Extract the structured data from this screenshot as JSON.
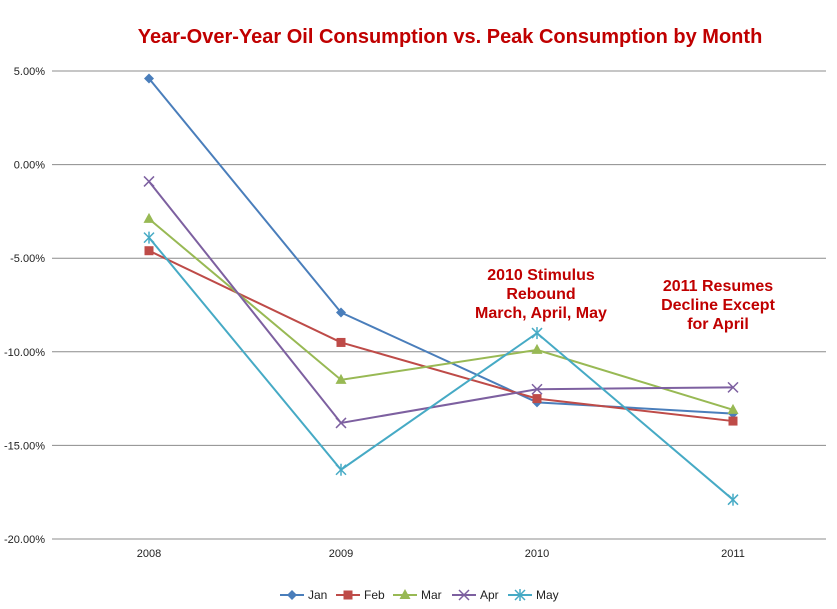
{
  "chart_data": {
    "type": "line",
    "title": "Year-Over-Year Oil Consumption vs. Peak Consumption by Month",
    "title_color": "#C00000",
    "categories": [
      "2008",
      "2009",
      "2010",
      "2011"
    ],
    "ylim": [
      -20,
      5
    ],
    "yticks": [
      5,
      0,
      -5,
      -10,
      -15,
      -20
    ],
    "ytick_labels": [
      "5.00%",
      "0.00%",
      "-5.00%",
      "-10.00%",
      "-15.00%",
      "-20.00%"
    ],
    "grid": true,
    "legend_position": "bottom",
    "series": [
      {
        "name": "Jan",
        "values": [
          4.6,
          -7.9,
          -12.7,
          -13.3
        ],
        "color": "#4A7EBB",
        "marker": "diamond"
      },
      {
        "name": "Feb",
        "values": [
          -4.6,
          -9.5,
          -12.5,
          -13.7
        ],
        "color": "#BE4B48",
        "marker": "square"
      },
      {
        "name": "Mar",
        "values": [
          -2.9,
          -11.5,
          -9.9,
          -13.1
        ],
        "color": "#98B954",
        "marker": "triangle"
      },
      {
        "name": "Apr",
        "values": [
          -0.9,
          -13.8,
          -12.0,
          -11.9
        ],
        "color": "#7D60A0",
        "marker": "x"
      },
      {
        "name": "May",
        "values": [
          -3.9,
          -16.3,
          -9.0,
          -17.9
        ],
        "color": "#46AAC5",
        "marker": "star"
      }
    ],
    "annotations": [
      {
        "id": "stimulus",
        "lines": [
          "2010 Stimulus",
          "Rebound",
          "March, April, May"
        ],
        "color": "#C00000"
      },
      {
        "id": "resumes",
        "lines": [
          "2011 Resumes",
          "Decline Except",
          "for April"
        ],
        "color": "#C00000"
      }
    ]
  }
}
